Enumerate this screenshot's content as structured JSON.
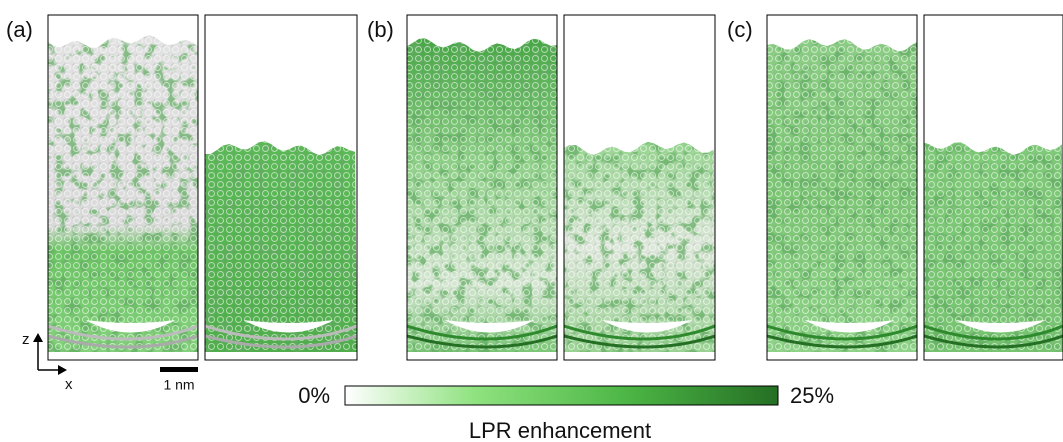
{
  "panels": [
    {
      "label": "(a)"
    },
    {
      "label": "(b)"
    },
    {
      "label": "(c)"
    }
  ],
  "axes": {
    "z": "z",
    "x": "x"
  },
  "scale_bar": {
    "label": "1 nm"
  },
  "colorbar": {
    "min_label": "0%",
    "max_label": "25%",
    "title": "LPR enhancement"
  }
}
